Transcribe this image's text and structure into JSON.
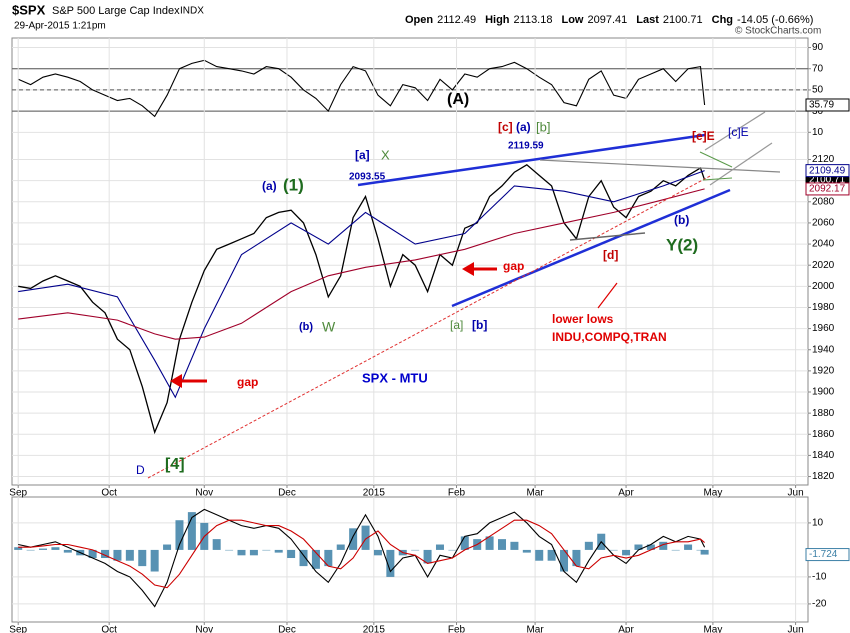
{
  "chart_data": [
    {
      "type": "line",
      "xlim": [
        -1.5,
        191
      ],
      "ylim": [
        7,
        99
      ],
      "yticks": [
        10,
        30,
        50,
        70,
        90
      ],
      "reference_lines": [
        30,
        50,
        70
      ],
      "grid": true,
      "series": [
        {
          "color": "#000000",
          "tag": true,
          "x": [
            0,
            3,
            6,
            9,
            12,
            15,
            18,
            21,
            24,
            27,
            30,
            33,
            36,
            39,
            42,
            45,
            48,
            51,
            54,
            57,
            60,
            63,
            66,
            69,
            72,
            75,
            78,
            81,
            84,
            87,
            90,
            93,
            96,
            99,
            102,
            105,
            108,
            111,
            114,
            117,
            120,
            123,
            126,
            129,
            132,
            135,
            138,
            141,
            144,
            147,
            150,
            153,
            156,
            159,
            162,
            165,
            166
          ],
          "values": [
            60,
            55,
            62,
            65,
            62,
            58,
            50,
            45,
            40,
            42,
            35,
            25,
            45,
            70,
            75,
            78,
            72,
            70,
            68,
            65,
            72,
            70,
            62,
            50,
            42,
            30,
            55,
            72,
            68,
            45,
            35,
            55,
            52,
            40,
            60,
            50,
            65,
            62,
            70,
            72,
            76,
            70,
            62,
            55,
            38,
            35,
            60,
            68,
            45,
            42,
            60,
            65,
            70,
            58,
            70,
            72,
            35.79
          ]
        }
      ]
    },
    {
      "type": "line",
      "title": "$SPX",
      "subtitle": "S&P 500 Large Cap Index",
      "exchange": "INDX",
      "date": "29-Apr-2015 1:21pm",
      "source": "© StockCharts.com",
      "quote": [
        {
          "label": "Open",
          "value": 2112.49
        },
        {
          "label": "High",
          "value": 2113.18
        },
        {
          "label": "Low",
          "value": 2097.41
        },
        {
          "label": "Last",
          "value": 2100.71
        },
        {
          "label": "Chg",
          "value": "-14.05 (-0.66%)"
        }
      ],
      "xlim": [
        -1.5,
        191
      ],
      "xticks": [
        {
          "value": 0,
          "label": "Sep"
        },
        {
          "value": 22,
          "label": "Oct"
        },
        {
          "value": 45,
          "label": "Nov"
        },
        {
          "value": 65,
          "label": "Dec"
        },
        {
          "value": 86,
          "label": "2015"
        },
        {
          "value": 106,
          "label": "Feb"
        },
        {
          "value": 125,
          "label": "Mar"
        },
        {
          "value": 147,
          "label": "Apr"
        },
        {
          "value": 168,
          "label": "May"
        },
        {
          "value": 188,
          "label": "Jun"
        }
      ],
      "ylim": [
        1812,
        2235
      ],
      "yticks": [
        1820,
        1840,
        1860,
        1880,
        1900,
        1920,
        1940,
        1960,
        1980,
        2000,
        2020,
        2040,
        2060,
        2080,
        2100,
        2120
      ],
      "grid": true,
      "series": [
        {
          "color": "#000000",
          "tag": true,
          "x": [
            0,
            3,
            6,
            9,
            12,
            15,
            18,
            21,
            24,
            27,
            30,
            33,
            36,
            39,
            42,
            45,
            48,
            51,
            54,
            57,
            60,
            63,
            66,
            69,
            72,
            75,
            78,
            81,
            84,
            87,
            90,
            93,
            96,
            99,
            102,
            105,
            108,
            111,
            114,
            117,
            120,
            123,
            126,
            129,
            132,
            135,
            138,
            141,
            144,
            147,
            150,
            153,
            156,
            159,
            162,
            165,
            166
          ],
          "values": [
            2000,
            1998,
            2005,
            2010,
            2005,
            2000,
            1985,
            1975,
            1950,
            1940,
            1905,
            1862,
            1890,
            1950,
            1985,
            2015,
            2035,
            2040,
            2045,
            2050,
            2065,
            2070,
            2072,
            2060,
            2030,
            1990,
            2010,
            2065,
            2085,
            2045,
            2000,
            2030,
            2020,
            1995,
            2030,
            2020,
            2055,
            2060,
            2085,
            2095,
            2108,
            2115,
            2105,
            2095,
            2060,
            2045,
            2085,
            2100,
            2075,
            2065,
            2085,
            2090,
            2100,
            2095,
            2105,
            2112,
            2100.71
          ]
        },
        {
          "color": "#00008b",
          "tag": true,
          "x": [
            0,
            12,
            24,
            33,
            38,
            45,
            54,
            66,
            75,
            84,
            96,
            108,
            120,
            132,
            144,
            156,
            166
          ],
          "values": [
            1995,
            2002,
            1990,
            1930,
            1895,
            1960,
            2030,
            2060,
            2040,
            2070,
            2040,
            2050,
            2095,
            2090,
            2080,
            2095,
            2109.49
          ]
        },
        {
          "color": "#a0002a",
          "tag": true,
          "x": [
            0,
            12,
            24,
            33,
            38,
            45,
            54,
            66,
            75,
            84,
            96,
            108,
            120,
            132,
            144,
            156,
            166
          ],
          "values": [
            1969,
            1975,
            1968,
            1955,
            1950,
            1952,
            1965,
            1995,
            2010,
            2018,
            2025,
            2035,
            2050,
            2060,
            2070,
            2082,
            2092.17
          ]
        }
      ],
      "annotations": [
        {
          "text": "(A)",
          "color": "#000000"
        },
        {
          "text": "[c]",
          "color": "#c00000"
        },
        {
          "text": "(a)",
          "color": "#0000aa"
        },
        {
          "text": "[b]",
          "color": "#4f8a3c"
        },
        {
          "text": "2119.59",
          "color": "#0000aa"
        },
        {
          "text": "[a]",
          "color": "#0000aa"
        },
        {
          "text": "X",
          "color": "#4f8a3c"
        },
        {
          "text": "2093.55",
          "color": "#0000aa"
        },
        {
          "text": "(a)",
          "color": "#0000aa"
        },
        {
          "text": "(1)",
          "color": "#1e6b1e"
        },
        {
          "text": "(b)",
          "color": "#0000aa"
        },
        {
          "text": "W",
          "color": "#4f8a3c"
        },
        {
          "text": "[a]",
          "color": "#4f8a3c"
        },
        {
          "text": "[b]",
          "color": "#0000aa"
        },
        {
          "text": "gap",
          "color": "#e00000"
        },
        {
          "text": "gap",
          "color": "#e00000"
        },
        {
          "text": "SPX - MTU",
          "color": "#0000cc"
        },
        {
          "text": "[d]",
          "color": "#c00000"
        },
        {
          "text": "lower lows",
          "color": "#e00000"
        },
        {
          "text": "INDU,COMPQ,TRAN",
          "color": "#e00000"
        },
        {
          "text": "[e]E",
          "color": "#c00000"
        },
        {
          "text": "[c]E",
          "color": "#0000aa"
        },
        {
          "text": "(b)",
          "color": "#0000aa"
        },
        {
          "text": "Y(2)",
          "color": "#1e6b1e"
        },
        {
          "text": "D",
          "color": "#0000aa"
        },
        {
          "text": "[4]",
          "color": "#1e6b1e"
        }
      ]
    },
    {
      "type": "line",
      "xlim": [
        -1.5,
        191
      ],
      "xticks": [
        {
          "value": 0,
          "label": "Sep"
        },
        {
          "value": 22,
          "label": "Oct"
        },
        {
          "value": 45,
          "label": "Nov"
        },
        {
          "value": 65,
          "label": "Dec"
        },
        {
          "value": 86,
          "label": "2015"
        },
        {
          "value": 106,
          "label": "Feb"
        },
        {
          "value": 125,
          "label": "Mar"
        },
        {
          "value": 147,
          "label": "Apr"
        },
        {
          "value": 168,
          "label": "May"
        },
        {
          "value": 188,
          "label": "Jun"
        }
      ],
      "ylim": [
        -26.7,
        19.6
      ],
      "yticks": [
        -20,
        -10,
        10
      ],
      "grid": true,
      "series": [
        {
          "type": "bar",
          "color": "#3b7fa6",
          "tag": true,
          "x": [
            0,
            3,
            6,
            9,
            12,
            15,
            18,
            21,
            24,
            27,
            30,
            33,
            36,
            39,
            42,
            45,
            48,
            51,
            54,
            57,
            60,
            63,
            66,
            69,
            72,
            75,
            78,
            81,
            84,
            87,
            90,
            93,
            96,
            99,
            102,
            105,
            108,
            111,
            114,
            117,
            120,
            123,
            126,
            129,
            132,
            135,
            138,
            141,
            144,
            147,
            150,
            153,
            156,
            159,
            162,
            165,
            166
          ],
          "values": [
            1,
            0,
            0.5,
            1,
            -1,
            -2,
            -3,
            -3,
            -4,
            -4,
            -6,
            -8,
            2,
            11,
            14,
            10,
            4,
            0,
            -2,
            -2,
            0,
            -1,
            -3,
            -6,
            -7,
            -6,
            2,
            8,
            9,
            -2,
            -10,
            -2,
            0,
            -5,
            2,
            0,
            5,
            4,
            5,
            4,
            3,
            -1,
            -4,
            -4,
            -8,
            -6,
            3,
            6,
            0,
            -2,
            2,
            2,
            3,
            0,
            2,
            0,
            -1.724
          ]
        },
        {
          "type": "line",
          "color": "#000000",
          "x": [
            0,
            3,
            6,
            9,
            12,
            15,
            18,
            21,
            24,
            27,
            30,
            33,
            36,
            39,
            42,
            45,
            48,
            51,
            54,
            57,
            60,
            63,
            66,
            69,
            72,
            75,
            78,
            81,
            84,
            87,
            90,
            93,
            96,
            99,
            102,
            105,
            108,
            111,
            114,
            117,
            120,
            123,
            126,
            129,
            132,
            135,
            138,
            141,
            144,
            147,
            150,
            153,
            156,
            159,
            162,
            165,
            166
          ],
          "values": [
            2,
            1,
            2,
            3,
            1,
            -1,
            -3,
            -5,
            -8,
            -10,
            -15,
            -21,
            -12,
            2,
            12,
            15,
            13,
            11,
            9,
            8,
            9,
            8,
            4,
            -2,
            -8,
            -12,
            -5,
            5,
            13,
            5,
            -8,
            -3,
            -2,
            -10,
            -2,
            -3,
            5,
            6,
            10,
            12,
            14,
            10,
            5,
            2,
            -8,
            -12,
            -4,
            3,
            -2,
            -5,
            0,
            2,
            5,
            3,
            5,
            4,
            1
          ]
        },
        {
          "type": "line",
          "color": "#cc0000",
          "x": [
            0,
            3,
            6,
            9,
            12,
            15,
            18,
            21,
            24,
            27,
            30,
            33,
            36,
            39,
            42,
            45,
            48,
            51,
            54,
            57,
            60,
            63,
            66,
            69,
            72,
            75,
            78,
            81,
            84,
            87,
            90,
            93,
            96,
            99,
            102,
            105,
            108,
            111,
            114,
            117,
            120,
            123,
            126,
            129,
            132,
            135,
            138,
            141,
            144,
            147,
            150,
            153,
            156,
            159,
            162,
            165,
            166
          ],
          "values": [
            1,
            1,
            1.5,
            2,
            2,
            1,
            0,
            -2,
            -4,
            -6,
            -9,
            -13,
            -14,
            -9,
            -2,
            5,
            9,
            11,
            11,
            10,
            9,
            9,
            7,
            4,
            -1,
            -6,
            -7,
            -3,
            4,
            7,
            2,
            -1,
            -2,
            -5,
            -4,
            -3,
            0,
            2,
            5,
            8,
            11,
            11,
            9,
            6,
            0,
            -6,
            -7,
            -3,
            -2,
            -3,
            -2,
            0,
            2,
            3,
            3,
            4,
            2.724
          ]
        }
      ]
    }
  ]
}
